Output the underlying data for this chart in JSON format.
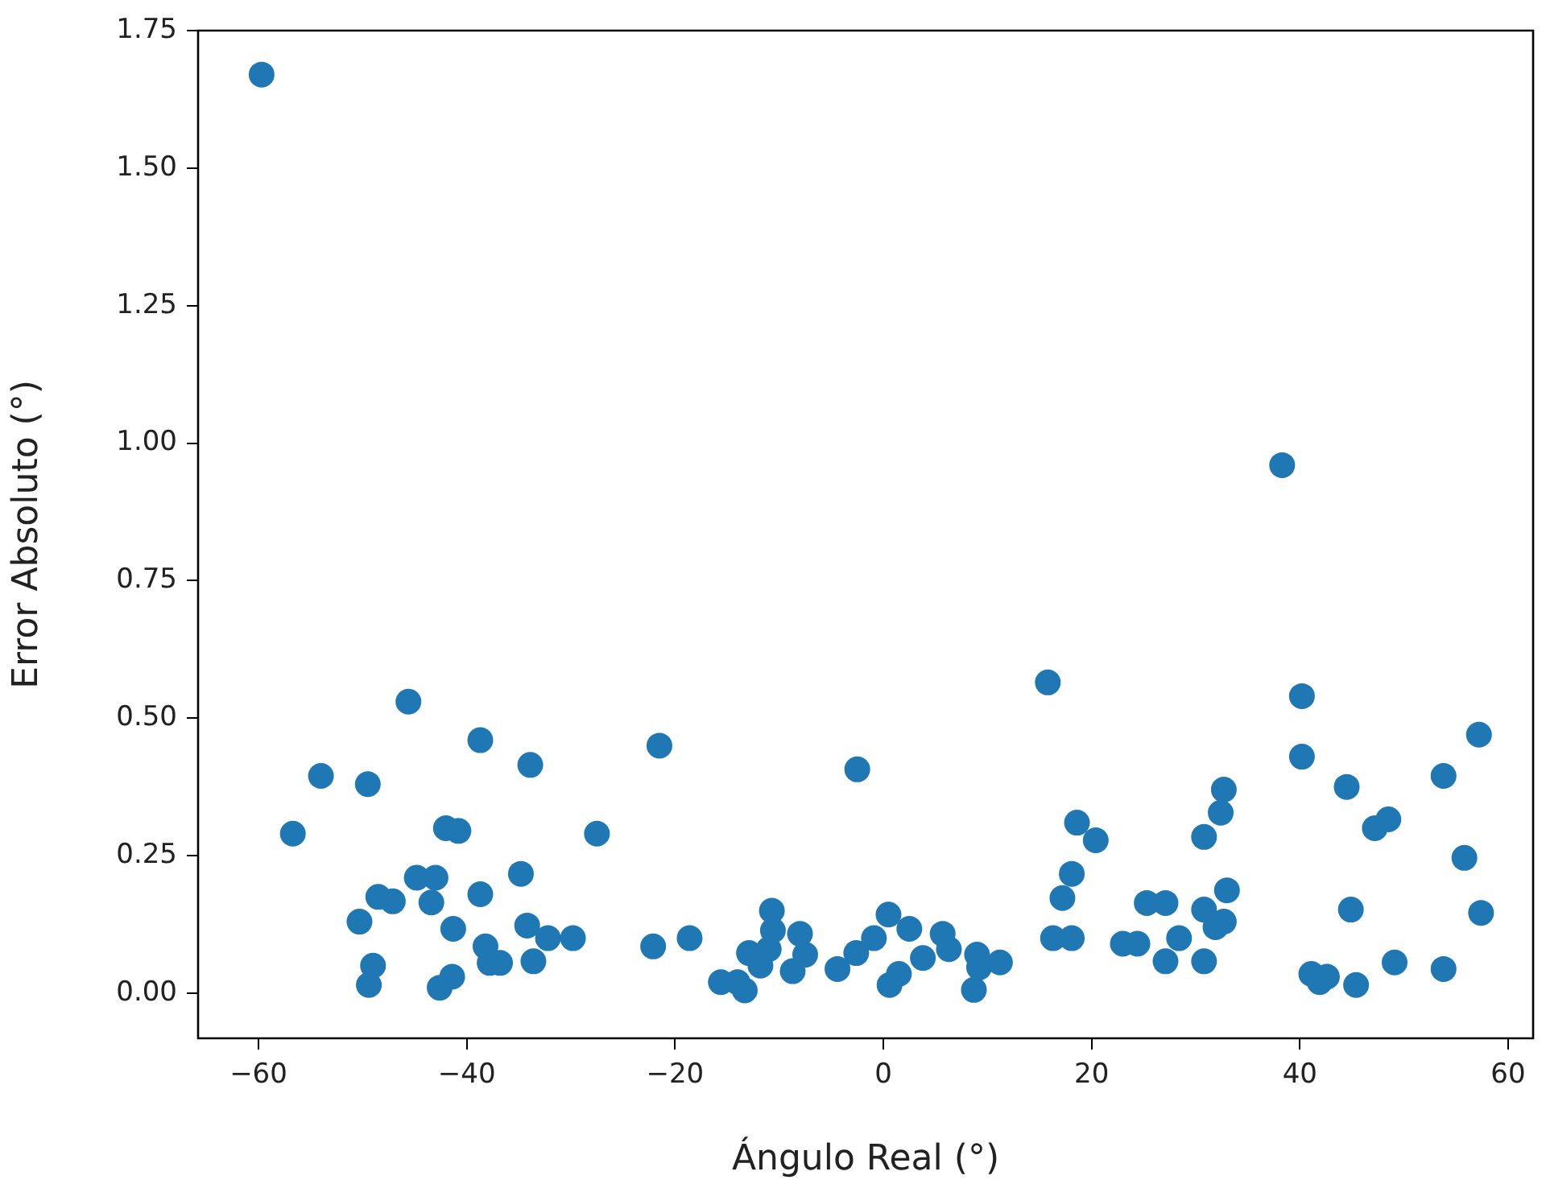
{
  "chart_data": {
    "type": "scatter",
    "xlabel": "Ángulo Real (°)",
    "ylabel": "Error Absoluto (°)",
    "xlim": [
      -65.8,
      62.4
    ],
    "xticks": [
      {
        "value": -60,
        "label": "−60"
      },
      {
        "value": -40,
        "label": "−40"
      },
      {
        "value": -20,
        "label": "−20"
      },
      0,
      20,
      40,
      60
    ],
    "ylim": [
      -0.082,
      1.75
    ],
    "yticks": [
      {
        "value": 0,
        "label": "0.00"
      },
      {
        "value": 0.25,
        "label": "0.25"
      },
      {
        "value": 0.5,
        "label": "0.50"
      },
      {
        "value": 0.75,
        "label": "0.75"
      },
      {
        "value": 1,
        "label": "1.00"
      },
      {
        "value": 1.25,
        "label": "1.25"
      },
      {
        "value": 1.5,
        "label": "1.50"
      },
      {
        "value": 1.75,
        "label": "1.75"
      }
    ],
    "grid": false,
    "legend": false,
    "marker": "circle",
    "series": [
      {
        "color": "#1f77b4",
        "x": [
          -59.7,
          -56.7,
          -54,
          -50.3,
          -49.5,
          -49.4,
          -49,
          -48.5,
          -47.1,
          -45.6,
          -44.8,
          -43.4,
          -43,
          -42.6,
          -42,
          -41.3,
          -41.4,
          -40.8,
          -38.7,
          -38.7,
          -38.2,
          -37.8,
          -36.8,
          -34.8,
          -34.2,
          -33.9,
          -33.6,
          -32.2,
          -29.8,
          -27.5,
          -22.1,
          -21.5,
          -18.6,
          -15.6,
          -14,
          -13.3,
          -12.9,
          -11.8,
          -10.7,
          -10.6,
          -11,
          -8.7,
          -8,
          -7.5,
          -4.4,
          -2.6,
          -2.5,
          -0.9,
          0.5,
          0.6,
          1.5,
          2.5,
          3.8,
          5.7,
          6.3,
          8.7,
          9,
          9.2,
          11.2,
          15.8,
          16.3,
          17.2,
          18.1,
          18.1,
          18.6,
          20.4,
          23,
          24.4,
          25.3,
          27.1,
          27.1,
          28.4,
          30.8,
          30.8,
          30.8,
          31.9,
          32.4,
          32.7,
          32.7,
          33,
          38.3,
          40.2,
          40.2,
          41.1,
          41.9,
          42.6,
          44.5,
          44.9,
          45.4,
          47.2,
          48.5,
          49.1,
          53.8,
          53.8,
          55.8,
          57.2,
          57.4
        ],
        "values": [
          1.67,
          0.29,
          0.395,
          0.13,
          0.38,
          0.015,
          0.05,
          0.175,
          0.167,
          0.53,
          0.21,
          0.165,
          0.21,
          0.01,
          0.3,
          0.117,
          0.03,
          0.295,
          0.46,
          0.18,
          0.085,
          0.055,
          0.055,
          0.217,
          0.123,
          0.415,
          0.058,
          0.1,
          0.1,
          0.29,
          0.085,
          0.45,
          0.1,
          0.02,
          0.02,
          0.005,
          0.073,
          0.05,
          0.15,
          0.114,
          0.08,
          0.04,
          0.108,
          0.07,
          0.044,
          0.073,
          0.407,
          0.1,
          0.143,
          0.015,
          0.035,
          0.117,
          0.064,
          0.108,
          0.08,
          0.006,
          0.07,
          0.047,
          0.056,
          0.565,
          0.1,
          0.173,
          0.1,
          0.217,
          0.31,
          0.278,
          0.09,
          0.09,
          0.164,
          0.164,
          0.058,
          0.1,
          0.058,
          0.284,
          0.152,
          0.12,
          0.328,
          0.13,
          0.37,
          0.187,
          0.96,
          0.54,
          0.43,
          0.035,
          0.02,
          0.03,
          0.375,
          0.152,
          0.015,
          0.3,
          0.316,
          0.056,
          0.044,
          0.395,
          0.246,
          0.47,
          0.146
        ]
      }
    ]
  }
}
